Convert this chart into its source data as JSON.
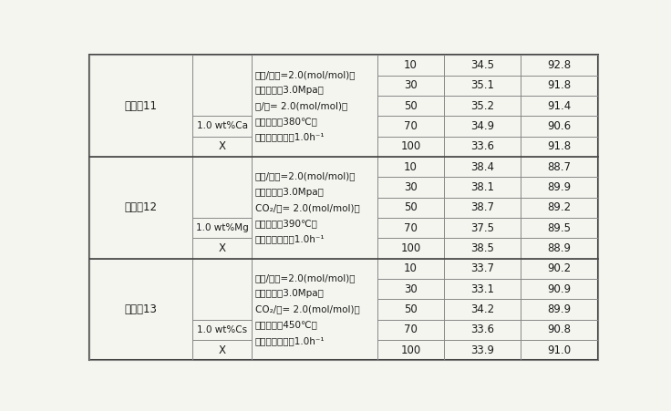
{
  "background_color": "#f5f5f0",
  "border_color": "#555555",
  "sections": [
    {
      "example": "实施例11",
      "catalyst": "1.0 wt%Ca",
      "catalyst_label": "X",
      "conditions_line1": "甲苯/甲醇=2.0(mol/mol)，",
      "conditions_line2": "介质压力：3.0Mpa，",
      "conditions_line3": "水/烃= 2.0(mol/mol)，",
      "conditions_line4": "反应温度：380℃，",
      "conditions_line5": "甲苯质量空速：1.0h⁻¹",
      "rows": [
        [
          10,
          34.5,
          92.8
        ],
        [
          30,
          35.1,
          91.8
        ],
        [
          50,
          35.2,
          91.4
        ],
        [
          70,
          34.9,
          90.6
        ],
        [
          100,
          33.6,
          91.8
        ]
      ]
    },
    {
      "example": "实施例12",
      "catalyst": "1.0 wt%Mg",
      "catalyst_label": "X",
      "conditions_line1": "甲苯/甲醇=2.0(mol/mol)，",
      "conditions_line2": "介质压力：3.0Mpa，",
      "conditions_line3": "CO₂/烃= 2.0(mol/mol)，",
      "conditions_line4": "反应温度：390℃，",
      "conditions_line5": "甲苯质量空速：1.0h⁻¹",
      "rows": [
        [
          10,
          38.4,
          88.7
        ],
        [
          30,
          38.1,
          89.9
        ],
        [
          50,
          38.7,
          89.2
        ],
        [
          70,
          37.5,
          89.5
        ],
        [
          100,
          38.5,
          88.9
        ]
      ]
    },
    {
      "example": "实施例13",
      "catalyst": "1.0 wt%Cs",
      "catalyst_label": "X",
      "conditions_line1": "甲苯/甲醇=2.0(mol/mol)，",
      "conditions_line2": "介质压力：3.0Mpa，",
      "conditions_line3": "CO₂/烃= 2.0(mol/mol)，",
      "conditions_line4": "反应温度：450℃，",
      "conditions_line5": "甲苯质量空速：1.0h⁻¹",
      "rows": [
        [
          10,
          33.7,
          90.2
        ],
        [
          30,
          33.1,
          90.9
        ],
        [
          50,
          34.2,
          89.9
        ],
        [
          70,
          33.6,
          90.8
        ],
        [
          100,
          33.9,
          91.0
        ]
      ]
    }
  ],
  "font_size": 8.5,
  "condition_font_size": 7.5,
  "grid_color": "#888888",
  "text_color": "#1a1a1a"
}
